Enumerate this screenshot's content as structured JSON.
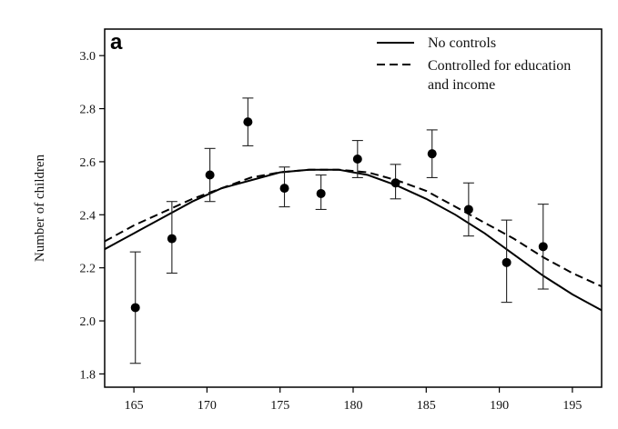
{
  "chart_data": {
    "type": "scatter",
    "panel_label": "a",
    "title": "",
    "xlabel": "",
    "ylabel": "Number of children",
    "xlim": [
      163,
      197
    ],
    "ylim": [
      1.75,
      3.1
    ],
    "x_ticks": [
      "165",
      "170",
      "175",
      "180",
      "185",
      "190",
      "195"
    ],
    "y_ticks": [
      "1.8",
      "2.0",
      "2.2",
      "2.4",
      "2.6",
      "2.8",
      "3.0"
    ],
    "grid": false,
    "legend_position": "top-right",
    "legend": [
      {
        "label": "No controls",
        "style": "solid"
      },
      {
        "label": "Controlled for education",
        "label_line2": "and income",
        "style": "dashed"
      }
    ],
    "points": [
      {
        "x": 165.1,
        "y": 2.05,
        "err_low": 1.84,
        "err_high": 2.26
      },
      {
        "x": 167.6,
        "y": 2.31,
        "err_low": 2.18,
        "err_high": 2.45
      },
      {
        "x": 170.2,
        "y": 2.55,
        "err_low": 2.45,
        "err_high": 2.65
      },
      {
        "x": 172.8,
        "y": 2.75,
        "err_low": 2.66,
        "err_high": 2.84
      },
      {
        "x": 175.3,
        "y": 2.5,
        "err_low": 2.43,
        "err_high": 2.58
      },
      {
        "x": 177.8,
        "y": 2.48,
        "err_low": 2.42,
        "err_high": 2.55
      },
      {
        "x": 180.3,
        "y": 2.61,
        "err_low": 2.54,
        "err_high": 2.68
      },
      {
        "x": 182.9,
        "y": 2.52,
        "err_low": 2.46,
        "err_high": 2.59
      },
      {
        "x": 185.4,
        "y": 2.63,
        "err_low": 2.54,
        "err_high": 2.72
      },
      {
        "x": 187.9,
        "y": 2.42,
        "err_low": 2.32,
        "err_high": 2.52
      },
      {
        "x": 190.5,
        "y": 2.22,
        "err_low": 2.07,
        "err_high": 2.38
      },
      {
        "x": 193.0,
        "y": 2.28,
        "err_low": 2.12,
        "err_high": 2.44
      }
    ],
    "series": [
      {
        "name": "No controls",
        "style": "solid",
        "x": [
          163,
          165,
          167,
          169,
          171,
          173,
          175,
          177,
          179,
          181,
          183,
          185,
          187,
          189,
          191,
          193,
          195,
          197
        ],
        "y": [
          2.27,
          2.33,
          2.39,
          2.45,
          2.5,
          2.53,
          2.56,
          2.57,
          2.57,
          2.55,
          2.51,
          2.46,
          2.4,
          2.33,
          2.25,
          2.17,
          2.1,
          2.04
        ]
      },
      {
        "name": "Controlled for education and income",
        "style": "dashed",
        "x": [
          163,
          165,
          167,
          169,
          171,
          173,
          175,
          177,
          179,
          181,
          183,
          185,
          187,
          189,
          191,
          193,
          195,
          197
        ],
        "y": [
          2.3,
          2.36,
          2.41,
          2.46,
          2.5,
          2.54,
          2.56,
          2.57,
          2.57,
          2.56,
          2.53,
          2.49,
          2.43,
          2.37,
          2.31,
          2.24,
          2.18,
          2.13
        ]
      }
    ]
  }
}
